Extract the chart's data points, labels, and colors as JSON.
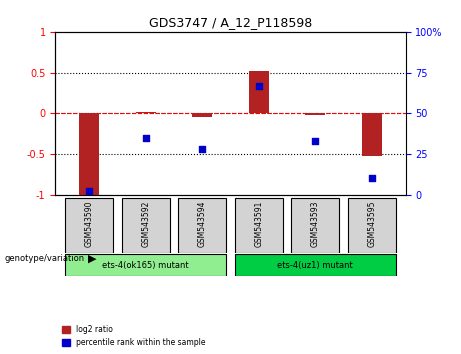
{
  "title": "GDS3747 / A_12_P118598",
  "samples": [
    "GSM543590",
    "GSM543592",
    "GSM543594",
    "GSM543591",
    "GSM543593",
    "GSM543595"
  ],
  "log2_ratio": [
    -1.0,
    0.02,
    -0.05,
    0.52,
    -0.02,
    -0.52
  ],
  "percentile_rank": [
    2.0,
    35.0,
    28.0,
    67.0,
    33.0,
    10.0
  ],
  "bar_color": "#b22222",
  "dot_color": "#0000cc",
  "ylim_left": [
    -1.0,
    1.0
  ],
  "ylim_right": [
    0,
    100
  ],
  "yticks_left": [
    -1.0,
    -0.5,
    0.0,
    0.5,
    1.0
  ],
  "yticks_right": [
    0,
    25,
    50,
    75,
    100
  ],
  "ytick_labels_left": [
    "-1",
    "-0.5",
    "0",
    "0.5",
    "1"
  ],
  "ytick_labels_right": [
    "0",
    "25",
    "50",
    "75",
    "100%"
  ],
  "hline_dotted": [
    -0.5,
    0.0,
    0.5
  ],
  "hline_red_dashed": 0.0,
  "group1_label": "ets-4(ok165) mutant",
  "group2_label": "ets-4(uz1) mutant",
  "group1_indices": [
    0,
    1,
    2
  ],
  "group2_indices": [
    3,
    4,
    5
  ],
  "group1_color": "#90ee90",
  "group2_color": "#00cc44",
  "sample_box_color": "#d3d3d3",
  "legend_red_label": "log2 ratio",
  "legend_blue_label": "percentile rank within the sample",
  "bar_width": 0.35
}
